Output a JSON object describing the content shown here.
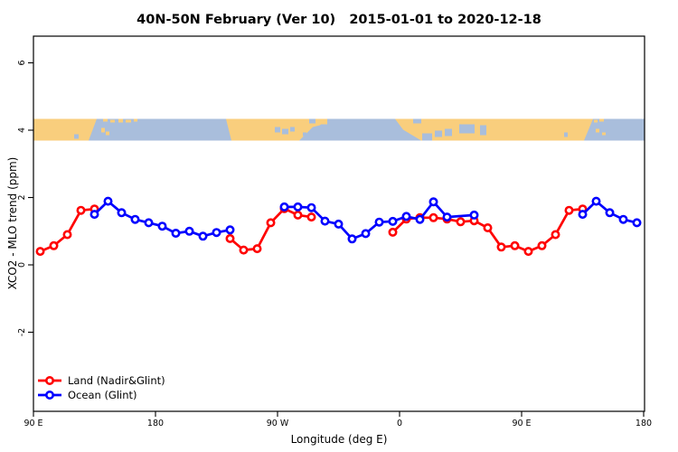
{
  "title": "40N-50N February (Ver 10)   2015-01-01 to 2020-12-18",
  "chart_data": {
    "type": "line",
    "title": "40N-50N February (Ver 10)   2015-01-01 to 2020-12-18",
    "xlabel": "Longitude (deg E)",
    "ylabel": "XCO2 - MLO trend (ppm)",
    "x_axis_note": "axis spans 450 deg of longitude: 90E east through 180, 90W, 0, 90E to 180",
    "x_ticks": [
      {
        "deg": 0,
        "label": "90 E"
      },
      {
        "deg": 90,
        "label": "180"
      },
      {
        "deg": 180,
        "label": "90 W"
      },
      {
        "deg": 270,
        "label": "0"
      },
      {
        "deg": 360,
        "label": "90 E"
      },
      {
        "deg": 450,
        "label": "180"
      }
    ],
    "y_ticks": [
      {
        "value": -2,
        "label": "-2"
      },
      {
        "value": 0,
        "label": "0"
      },
      {
        "value": 2,
        "label": "2"
      },
      {
        "value": 4,
        "label": "4"
      },
      {
        "value": 6,
        "label": "6"
      }
    ],
    "ylim": [
      -4.35,
      6.8
    ],
    "grid": false,
    "legend_position": "bottom-left",
    "map_band": {
      "description": "40N-50N world coastline raster strip drawn across the plot near y=4",
      "value_top": 4.33,
      "value_bottom": 3.69,
      "land_color": "#F9CE7D",
      "ocean_color": "#A9BEDC"
    },
    "series": [
      {
        "name": "Land (Nadir&Glint)",
        "color": "#FF0000",
        "marker": "open-circle",
        "segments": [
          {
            "deg": [
              5,
              15,
              25,
              35,
              45
            ],
            "values": [
              0.4,
              0.57,
              0.9,
              1.62,
              1.66
            ]
          },
          {
            "deg": [
              145,
              155,
              165,
              175,
              185,
              195,
              205
            ],
            "values": [
              0.78,
              0.44,
              0.48,
              1.25,
              1.67,
              1.48,
              1.42
            ]
          },
          {
            "deg": [
              265,
              275,
              285,
              295,
              305,
              315,
              325,
              335,
              345,
              355,
              365,
              375,
              385,
              395,
              405
            ],
            "values": [
              0.97,
              1.36,
              1.4,
              1.4,
              1.36,
              1.28,
              1.31,
              1.1,
              0.53,
              0.57,
              0.4,
              0.57,
              0.9,
              1.62,
              1.66
            ]
          }
        ]
      },
      {
        "name": "Ocean (Glint)",
        "color": "#0000FF",
        "marker": "open-circle",
        "segments": [
          {
            "deg": [
              45,
              55,
              65,
              75,
              85,
              95,
              105,
              115,
              125,
              135,
              145
            ],
            "values": [
              1.5,
              1.89,
              1.55,
              1.35,
              1.25,
              1.15,
              0.94,
              1.0,
              0.85,
              0.96,
              1.04
            ]
          },
          {
            "deg": [
              185,
              195,
              205,
              215,
              225,
              235,
              245,
              255,
              265,
              275,
              285,
              295,
              305,
              325
            ],
            "values": [
              1.72,
              1.72,
              1.7,
              1.3,
              1.21,
              0.77,
              0.93,
              1.27,
              1.29,
              1.44,
              1.35,
              1.87,
              1.42,
              1.48
            ]
          },
          {
            "deg": [
              405,
              415,
              425,
              435,
              445
            ],
            "values": [
              1.5,
              1.89,
              1.55,
              1.35,
              1.25
            ]
          }
        ]
      }
    ]
  },
  "legend": {
    "items": [
      {
        "label": "Land (Nadir&Glint)",
        "color": "#FF0000"
      },
      {
        "label": "Ocean (Glint)",
        "color": "#0000FF"
      }
    ]
  }
}
